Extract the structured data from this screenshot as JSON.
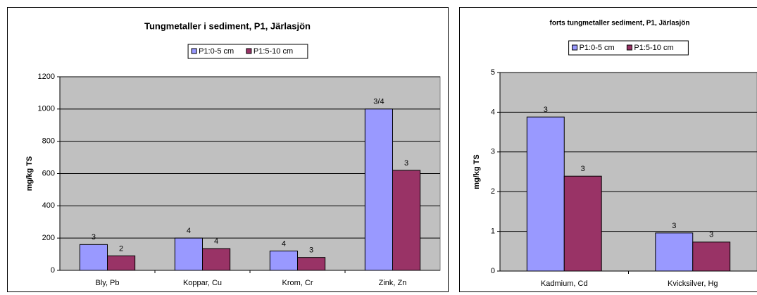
{
  "chart_data": [
    {
      "type": "bar",
      "title": "Tungmetaller i sediment, P1, Järlasjön",
      "y_label": "mg/kg TS",
      "categories": [
        "Bly, Pb",
        "Koppar, Cu",
        "Krom, Cr",
        "Zink, Zn"
      ],
      "series": [
        {
          "name": "P1:0-5 cm",
          "color": "#9999ff",
          "values": [
            160,
            200,
            120,
            1000
          ],
          "labels": [
            "3",
            "4",
            "4",
            "3/4"
          ]
        },
        {
          "name": "P1:5-10 cm",
          "color": "#993366",
          "values": [
            90,
            135,
            80,
            620
          ],
          "labels": [
            "2",
            "4",
            "3",
            "3"
          ]
        }
      ],
      "ylim": [
        0,
        1200
      ],
      "yticks": [
        0,
        200,
        400,
        600,
        800,
        1000,
        1200
      ],
      "grid": true,
      "legend": "top"
    },
    {
      "type": "bar",
      "title": "forts tungmetaller sediment, P1, Järlasjön",
      "y_label": "mg/kg TS",
      "categories": [
        "Kadmium, Cd",
        "Kvicksilver, Hg"
      ],
      "series": [
        {
          "name": "P1:0-5 cm",
          "color": "#9999ff",
          "values": [
            3.88,
            0.96
          ],
          "labels": [
            "3",
            "3"
          ]
        },
        {
          "name": "P1:5-10 cm",
          "color": "#993366",
          "values": [
            2.39,
            0.73
          ],
          "labels": [
            "3",
            "3"
          ]
        }
      ],
      "ylim": [
        0,
        5
      ],
      "yticks": [
        0,
        1,
        2,
        3,
        4,
        5
      ],
      "grid": true,
      "legend": "top"
    }
  ]
}
